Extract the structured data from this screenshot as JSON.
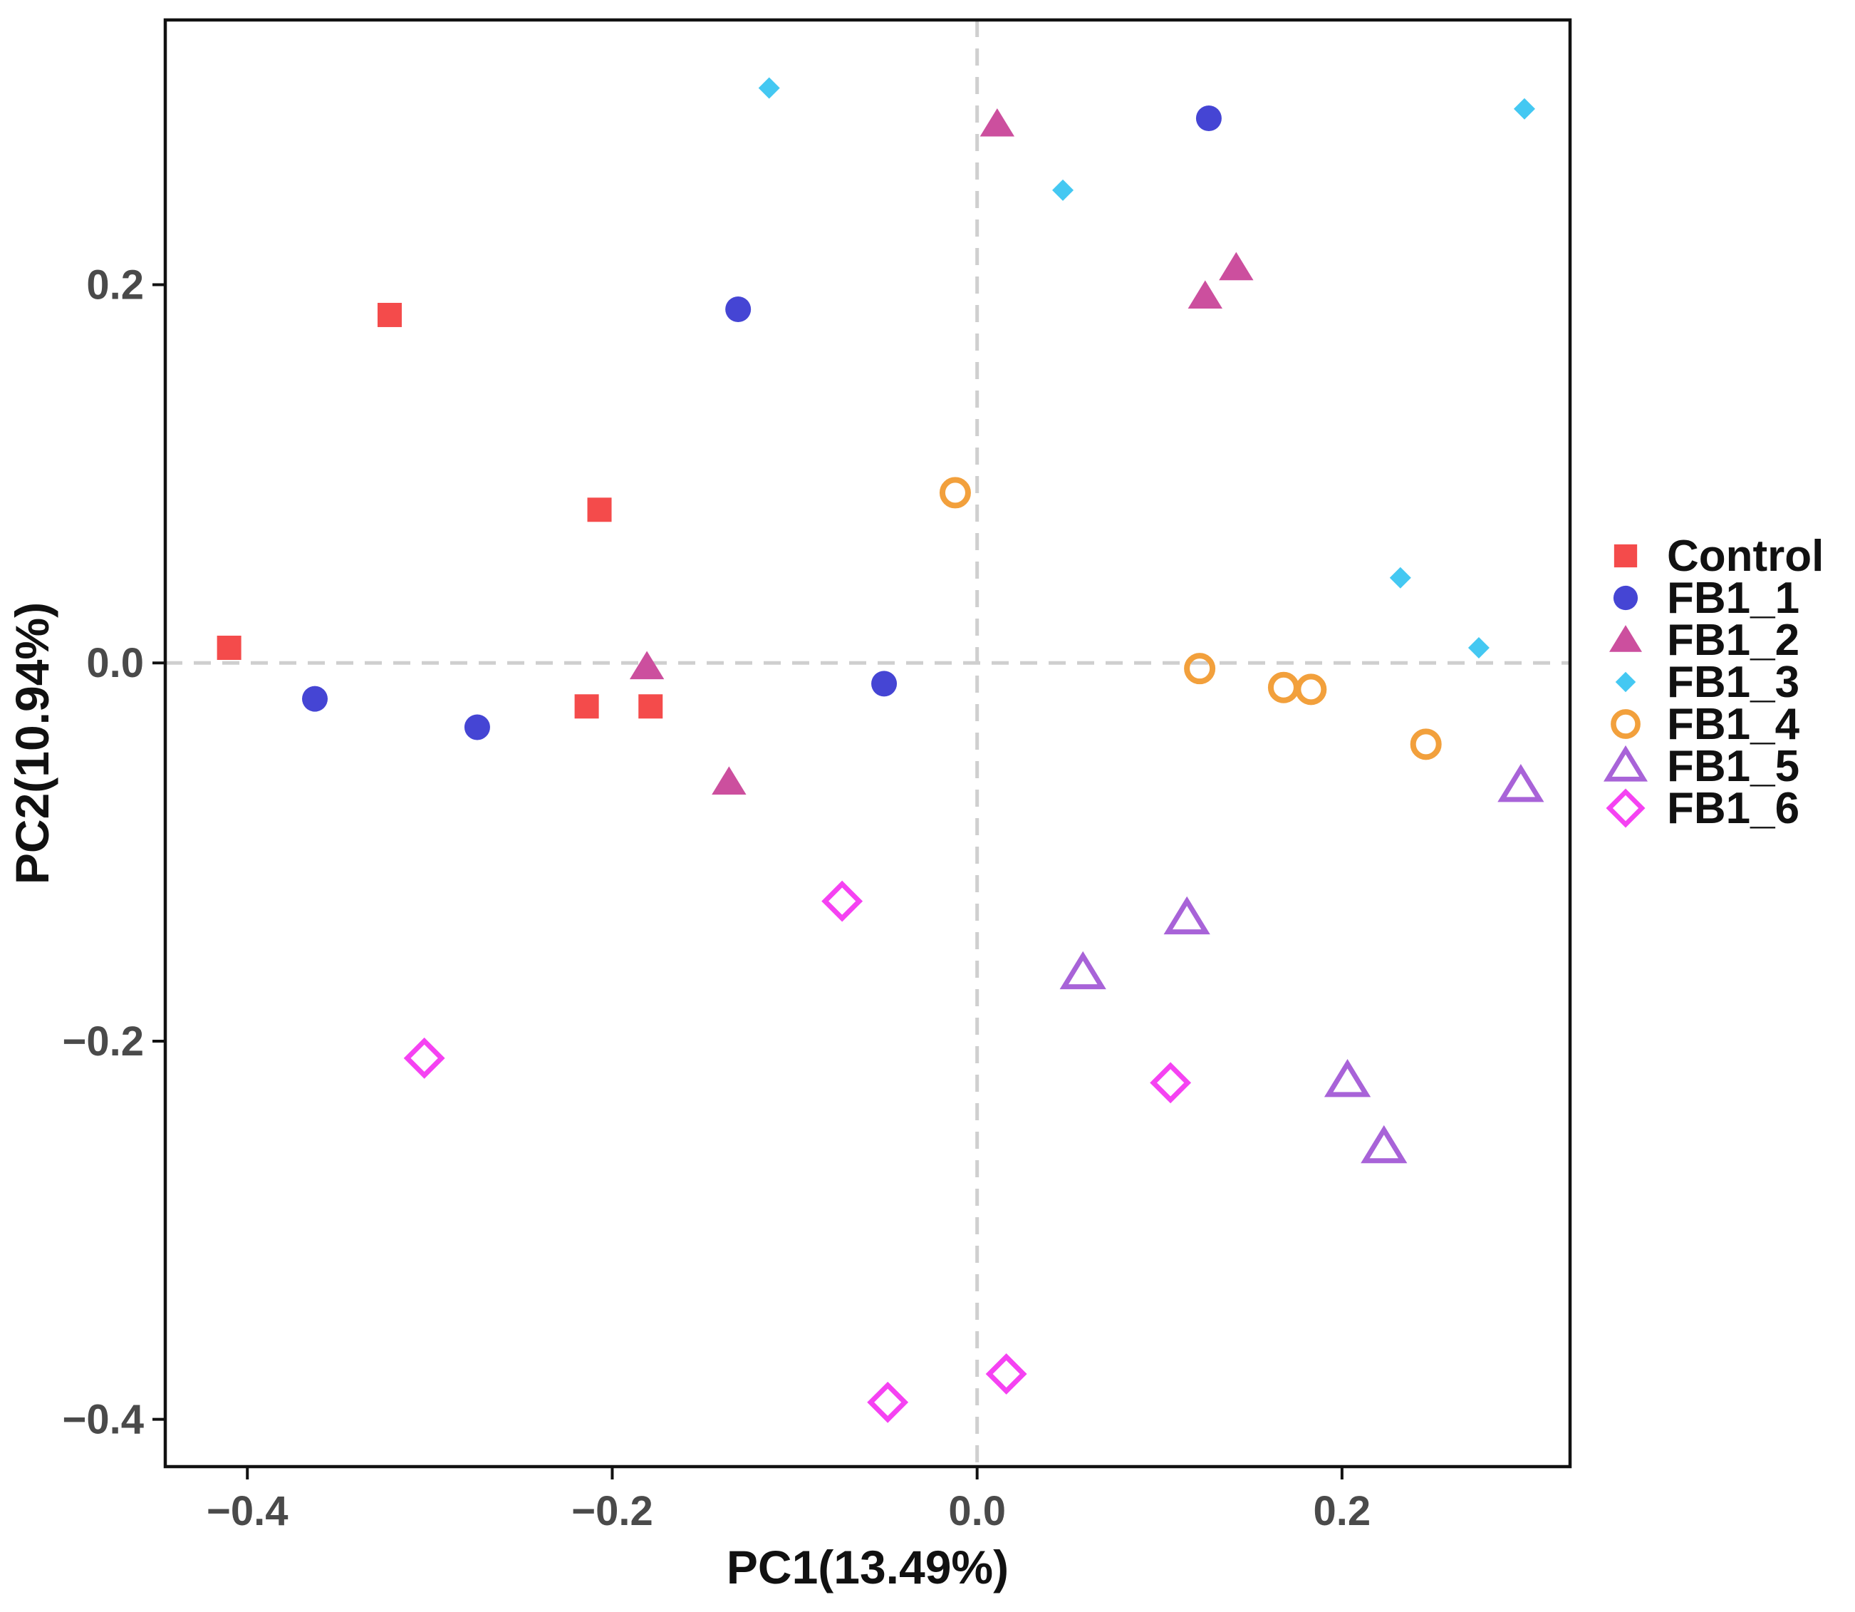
{
  "chart_data": {
    "type": "scatter",
    "title": "",
    "xlabel": "PC1(13.49%)",
    "ylabel": "PC2(10.94%)",
    "xlim": [
      -0.445,
      0.325
    ],
    "ylim": [
      -0.425,
      0.34
    ],
    "x_ticks": [
      -0.4,
      -0.2,
      0.0,
      0.2
    ],
    "x_tick_labels": [
      "−0.4",
      "−0.2",
      "0.0",
      "0.2"
    ],
    "y_ticks": [
      0.2,
      0.0,
      -0.2,
      -0.4
    ],
    "y_tick_labels": [
      "0.2",
      "0.0",
      "−0.2",
      "−0.4"
    ],
    "grid": false,
    "reference_lines": {
      "x": 0,
      "y": 0,
      "style": "dashed"
    },
    "legend_position": "right",
    "series": [
      {
        "name": "Control",
        "marker": "square-filled",
        "color": "#f44b4b",
        "points": [
          [
            -0.322,
            0.184
          ],
          [
            -0.41,
            0.008
          ],
          [
            -0.207,
            0.081
          ],
          [
            -0.214,
            -0.023
          ],
          [
            -0.179,
            -0.023
          ]
        ]
      },
      {
        "name": "FB1_1",
        "marker": "circle-filled",
        "color": "#4545d4",
        "points": [
          [
            -0.363,
            -0.019
          ],
          [
            -0.274,
            -0.034
          ],
          [
            -0.131,
            0.187
          ],
          [
            -0.051,
            -0.011
          ],
          [
            0.127,
            0.288
          ]
        ]
      },
      {
        "name": "FB1_2",
        "marker": "triangle-filled",
        "color": "#cc4f9e",
        "points": [
          [
            0.011,
            0.285
          ],
          [
            0.142,
            0.209
          ],
          [
            0.125,
            0.194
          ],
          [
            -0.181,
            -0.002
          ],
          [
            -0.136,
            -0.063
          ]
        ]
      },
      {
        "name": "FB1_3",
        "marker": "diamond-filled",
        "color": "#44c8f2",
        "points": [
          [
            -0.114,
            0.304
          ],
          [
            0.047,
            0.25
          ],
          [
            0.3,
            0.293
          ],
          [
            0.232,
            0.045
          ],
          [
            0.275,
            0.008
          ]
        ]
      },
      {
        "name": "FB1_4",
        "marker": "circle-open",
        "color": "#f2a03c",
        "points": [
          [
            -0.012,
            0.09
          ],
          [
            0.122,
            -0.003
          ],
          [
            0.168,
            -0.013
          ],
          [
            0.183,
            -0.014
          ],
          [
            0.246,
            -0.043
          ]
        ]
      },
      {
        "name": "FB1_5",
        "marker": "triangle-open",
        "color": "#a863d8",
        "points": [
          [
            0.298,
            -0.065
          ],
          [
            0.115,
            -0.135
          ],
          [
            0.058,
            -0.164
          ],
          [
            0.203,
            -0.221
          ],
          [
            0.223,
            -0.256
          ]
        ]
      },
      {
        "name": "FB1_6",
        "marker": "diamond-open",
        "color": "#f542f2",
        "points": [
          [
            -0.074,
            -0.126
          ],
          [
            -0.303,
            -0.209
          ],
          [
            0.106,
            -0.222
          ],
          [
            -0.049,
            -0.391
          ],
          [
            0.016,
            -0.376
          ]
        ]
      }
    ]
  }
}
